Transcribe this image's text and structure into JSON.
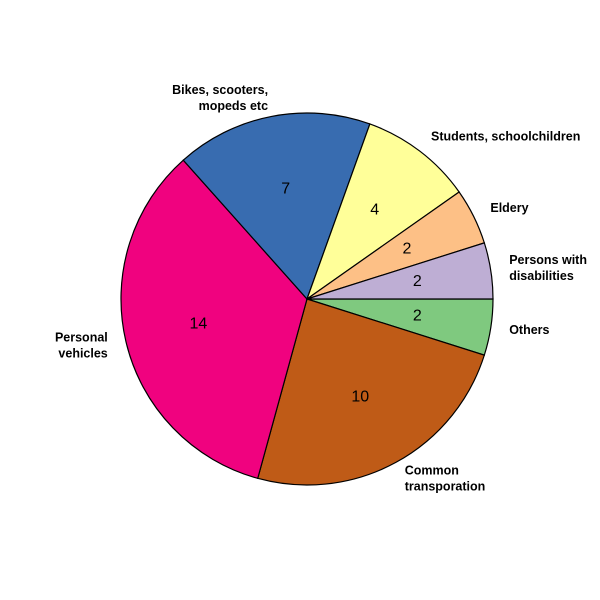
{
  "chart_data": {
    "type": "pie",
    "title": "",
    "categories": [
      "Others",
      "Common transporation",
      "Personal vehicles",
      "Bikes, scooters, mopeds etc",
      "Students, schoolchildren",
      "Eldery",
      "Persons with disabilities"
    ],
    "values": [
      2,
      10,
      14,
      7,
      4,
      2,
      2
    ],
    "label_lines": [
      [
        "Others"
      ],
      [
        "Common",
        "transporation"
      ],
      [
        "Personal",
        "vehicles"
      ],
      [
        "Bikes, scooters,",
        "mopeds etc"
      ],
      [
        "Students, schoolchildren"
      ],
      [
        "Eldery"
      ],
      [
        "Persons with",
        "disabilities"
      ]
    ],
    "colors": [
      "#7fc97f",
      "#bf5b17",
      "#f0027f",
      "#386cb0",
      "#ffff99",
      "#fdc086",
      "#beaed4"
    ],
    "start_angle_deg": 0,
    "direction": "clockwise",
    "legend": "none"
  }
}
